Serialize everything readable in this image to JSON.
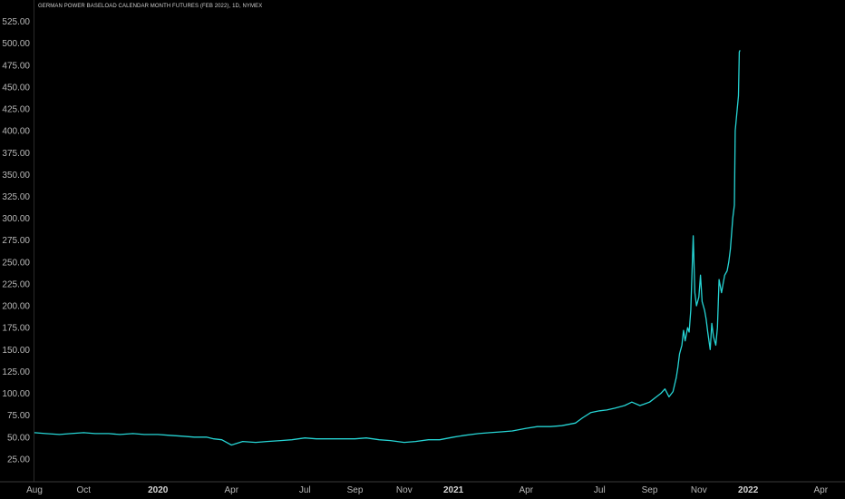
{
  "chart_data": {
    "type": "line",
    "title": "GERMAN POWER BASELOAD CALENDAR MONTH FUTURES (FEB 2022), 1D, NYMEX",
    "xlabel": "",
    "ylabel": "",
    "ylim": [
      0,
      537
    ],
    "grid": false,
    "y_ticks": [
      "25.00",
      "50.00",
      "75.00",
      "100.00",
      "125.00",
      "150.00",
      "175.00",
      "200.00",
      "225.00",
      "250.00",
      "275.00",
      "300.00",
      "325.00",
      "350.00",
      "375.00",
      "400.00",
      "425.00",
      "450.00",
      "475.00",
      "500.00",
      "525.00"
    ],
    "x_ticks": [
      {
        "label": "Aug",
        "date": "2019-08-01",
        "major": false
      },
      {
        "label": "Oct",
        "date": "2019-10-01",
        "major": false
      },
      {
        "label": "2020",
        "date": "2020-01-01",
        "major": true
      },
      {
        "label": "Apr",
        "date": "2020-04-01",
        "major": false
      },
      {
        "label": "Jul",
        "date": "2020-07-01",
        "major": false
      },
      {
        "label": "Sep",
        "date": "2020-09-01",
        "major": false
      },
      {
        "label": "Nov",
        "date": "2020-11-01",
        "major": false
      },
      {
        "label": "2021",
        "date": "2021-01-01",
        "major": true
      },
      {
        "label": "Apr",
        "date": "2021-04-01",
        "major": false
      },
      {
        "label": "Jul",
        "date": "2021-07-01",
        "major": false
      },
      {
        "label": "Sep",
        "date": "2021-09-01",
        "major": false
      },
      {
        "label": "Nov",
        "date": "2021-11-01",
        "major": false
      },
      {
        "label": "2022",
        "date": "2022-01-01",
        "major": true
      },
      {
        "label": "Apr",
        "date": "2022-04-01",
        "major": false
      }
    ],
    "xlim": [
      "2019-08-01",
      "2022-05-01"
    ],
    "line_color": "#26d4d4",
    "series": [
      {
        "x": [
          "2019-08-01",
          "2019-08-15",
          "2019-09-01",
          "2019-09-15",
          "2019-10-01",
          "2019-10-15",
          "2019-11-01",
          "2019-11-15",
          "2019-12-01",
          "2019-12-15",
          "2020-01-01",
          "2020-01-15",
          "2020-02-01",
          "2020-02-15",
          "2020-03-01",
          "2020-03-10",
          "2020-03-20",
          "2020-04-01",
          "2020-04-15",
          "2020-05-01",
          "2020-05-15",
          "2020-06-01",
          "2020-06-15",
          "2020-07-01",
          "2020-07-15",
          "2020-08-01",
          "2020-08-15",
          "2020-09-01",
          "2020-09-15",
          "2020-10-01",
          "2020-10-15",
          "2020-11-01",
          "2020-11-15",
          "2020-12-01",
          "2020-12-15",
          "2021-01-01",
          "2021-01-15",
          "2021-02-01",
          "2021-02-15",
          "2021-03-01",
          "2021-03-15",
          "2021-04-01",
          "2021-04-15",
          "2021-05-01",
          "2021-05-15",
          "2021-06-01",
          "2021-06-10",
          "2021-06-20",
          "2021-07-01",
          "2021-07-10",
          "2021-07-20",
          "2021-08-01",
          "2021-08-10",
          "2021-08-20",
          "2021-08-26",
          "2021-09-01",
          "2021-09-08",
          "2021-09-15",
          "2021-09-20",
          "2021-09-25",
          "2021-09-30",
          "2021-10-04",
          "2021-10-06",
          "2021-10-08",
          "2021-10-11",
          "2021-10-13",
          "2021-10-15",
          "2021-10-18",
          "2021-10-20",
          "2021-10-22",
          "2021-10-25",
          "2021-10-27",
          "2021-10-29",
          "2021-11-01",
          "2021-11-03",
          "2021-11-05",
          "2021-11-08",
          "2021-11-10",
          "2021-11-12",
          "2021-11-15",
          "2021-11-17",
          "2021-11-19",
          "2021-11-22",
          "2021-11-24",
          "2021-11-26",
          "2021-11-29",
          "2021-12-01",
          "2021-12-03",
          "2021-12-06",
          "2021-12-08",
          "2021-12-10",
          "2021-12-13",
          "2021-12-15",
          "2021-12-16",
          "2021-12-17",
          "2021-12-20",
          "2021-12-21",
          "2021-12-22"
        ],
        "values": [
          55,
          54,
          53,
          54,
          55,
          54,
          54,
          53,
          54,
          53,
          53,
          52,
          51,
          50,
          50,
          48,
          47,
          41,
          45,
          44,
          45,
          46,
          47,
          49,
          48,
          48,
          48,
          48,
          49,
          47,
          46,
          44,
          45,
          47,
          47,
          50,
          52,
          54,
          55,
          56,
          57,
          60,
          62,
          62,
          63,
          66,
          72,
          78,
          80,
          81,
          83,
          86,
          90,
          86,
          88,
          90,
          95,
          100,
          105,
          96,
          102,
          118,
          130,
          145,
          155,
          172,
          160,
          175,
          170,
          195,
          280,
          215,
          200,
          210,
          235,
          205,
          195,
          185,
          170,
          150,
          180,
          165,
          155,
          175,
          230,
          215,
          225,
          235,
          240,
          250,
          265,
          300,
          315,
          400,
          410,
          440,
          490,
          492
        ]
      }
    ]
  }
}
